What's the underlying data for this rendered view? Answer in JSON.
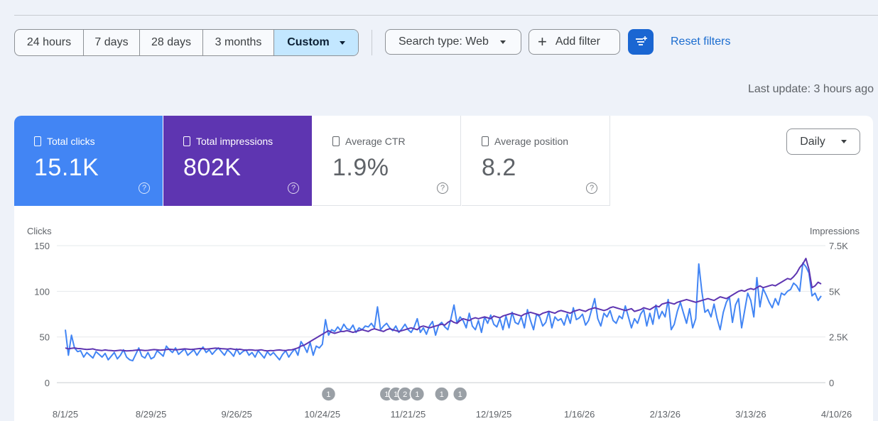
{
  "date_range": {
    "options": [
      "24 hours",
      "7 days",
      "28 days",
      "3 months",
      "Custom"
    ],
    "selected": "Custom"
  },
  "filters": {
    "search_type": "Search type: Web",
    "add_filter": "Add filter",
    "filter_icon": "filter-sliders-icon",
    "reset": "Reset filters"
  },
  "last_update": "Last update: 3 hours ago",
  "metrics": [
    {
      "label": "Total clicks",
      "value": "15.1K",
      "selected": true,
      "color": "#4285f4"
    },
    {
      "label": "Total impressions",
      "value": "802K",
      "selected": true,
      "color": "#5e35b1"
    },
    {
      "label": "Average CTR",
      "value": "1.9%",
      "selected": false
    },
    {
      "label": "Average position",
      "value": "8.2",
      "selected": false
    }
  ],
  "granularity": "Daily",
  "colors": {
    "accent": "#1a66d2",
    "clicks": "#4285f4",
    "impressions": "#5e35b1"
  },
  "chart_data": {
    "type": "line",
    "ylabel_left": "Clicks",
    "ylabel_right": "Impressions",
    "yticks_left": [
      "150",
      "100",
      "50",
      "0"
    ],
    "yticks_right": [
      "7.5K",
      "5K",
      "2.5K",
      "0"
    ],
    "ylim_left": [
      0,
      150
    ],
    "ylim_right": [
      0,
      7500
    ],
    "x_ticks": [
      "8/1/25",
      "8/29/25",
      "9/26/25",
      "10/24/25",
      "11/21/25",
      "12/19/25",
      "1/16/26",
      "2/13/26",
      "3/13/26",
      "4/10/26"
    ],
    "annotations": [
      {
        "x": "10/26/25",
        "label": "1"
      },
      {
        "x": "11/14/25",
        "label": "1"
      },
      {
        "x": "11/17/25",
        "label": "1"
      },
      {
        "x": "11/20/25",
        "label": "2"
      },
      {
        "x": "11/24/25",
        "label": "1"
      },
      {
        "x": "12/2/25",
        "label": "1"
      },
      {
        "x": "12/8/25",
        "label": "1"
      }
    ],
    "series": [
      {
        "name": "Clicks",
        "color": "#4285f4",
        "axis": "left",
        "values": [
          58,
          30,
          52,
          38,
          34,
          35,
          28,
          33,
          30,
          27,
          34,
          31,
          28,
          32,
          25,
          29,
          33,
          26,
          30,
          36,
          28,
          25,
          24,
          31,
          38,
          29,
          27,
          33,
          26,
          28,
          35,
          32,
          29,
          40,
          36,
          33,
          38,
          31,
          34,
          37,
          30,
          33,
          36,
          30,
          35,
          39,
          33,
          36,
          31,
          35,
          38,
          34,
          30,
          36,
          33,
          29,
          37,
          31,
          34,
          36,
          30,
          33,
          28,
          35,
          31,
          27,
          34,
          30,
          33,
          29,
          25,
          31,
          35,
          28,
          33,
          37,
          30,
          45,
          40,
          33,
          44,
          30,
          40,
          38,
          42,
          69,
          52,
          58,
          56,
          61,
          57,
          64,
          59,
          58,
          63,
          55,
          60,
          58,
          62,
          61,
          65,
          60,
          83,
          58,
          62,
          65,
          60,
          57,
          62,
          55,
          59,
          64,
          58,
          55,
          61,
          70,
          55,
          60,
          53,
          62,
          67,
          52,
          63,
          66,
          61,
          58,
          70,
          85,
          65,
          72,
          68,
          60,
          76,
          62,
          58,
          68,
          55,
          72,
          65,
          74,
          64,
          61,
          70,
          58,
          73,
          60,
          77,
          66,
          64,
          72,
          60,
          80,
          68,
          58,
          75,
          72,
          62,
          66,
          78,
          60,
          72,
          68,
          70,
          63,
          75,
          65,
          82,
          69,
          71,
          75,
          63,
          68,
          80,
          92,
          70,
          62,
          76,
          72,
          79,
          68,
          65,
          73,
          70,
          84,
          72,
          60,
          70,
          65,
          75,
          80,
          62,
          76,
          64,
          85,
          70,
          78,
          72,
          91,
          58,
          64,
          78,
          88,
          76,
          65,
          81,
          60,
          70,
          130,
          100,
          77,
          80,
          72,
          86,
          70,
          58,
          77,
          88,
          94,
          66,
          85,
          92,
          60,
          79,
          98,
          90,
          72,
          115,
          83,
          103,
          96,
          88,
          82,
          92,
          85,
          98,
          96,
          100,
          102,
          109,
          106,
          100,
          131,
          127,
          120,
          95,
          98,
          90,
          95
        ]
      },
      {
        "name": "Impressions",
        "color": "#5e35b1",
        "axis": "right",
        "values": [
          1900,
          1850,
          1880,
          1900,
          1870,
          1860,
          1840,
          1820,
          1830,
          1850,
          1800,
          1780,
          1760,
          1790,
          1770,
          1760,
          1740,
          1760,
          1780,
          1760,
          1740,
          1750,
          1760,
          1780,
          1790,
          1780,
          1760,
          1770,
          1790,
          1810,
          1800,
          1780,
          1790,
          1810,
          1830,
          1820,
          1800,
          1810,
          1830,
          1850,
          1840,
          1820,
          1830,
          1850,
          1870,
          1860,
          1840,
          1850,
          1870,
          1890,
          1880,
          1860,
          1850,
          1840,
          1860,
          1830,
          1810,
          1830,
          1800,
          1780,
          1800,
          1790,
          1770,
          1780,
          1800,
          1760,
          1740,
          1760,
          1750,
          1780,
          1790,
          1770,
          1760,
          1790,
          1800,
          1850,
          1900,
          2000,
          2050,
          2150,
          2250,
          2350,
          2450,
          2550,
          2650,
          2750,
          2850,
          2750,
          2700,
          2750,
          2800,
          2800,
          2850,
          2800,
          2750,
          2800,
          2850,
          2900,
          2850,
          2800,
          2900,
          2950,
          2900,
          2850,
          2800,
          2900,
          2950,
          2900,
          2850,
          2800,
          2850,
          2900,
          2950,
          3000,
          2950,
          2900,
          3050,
          3100,
          3050,
          3000,
          3050,
          3100,
          3150,
          3200,
          3150,
          3300,
          3400,
          3300,
          3250,
          3400,
          3500,
          3450,
          3400,
          3500,
          3550,
          3500,
          3550,
          3600,
          3550,
          3500,
          3650,
          3600,
          3550,
          3650,
          3700,
          3750,
          3800,
          3750,
          3700,
          3650,
          3750,
          3800,
          3850,
          3800,
          3750,
          3700,
          3800,
          3850,
          3900,
          3850,
          3800,
          3900,
          3950,
          3900,
          3850,
          3800,
          3900,
          3950,
          4000,
          3950,
          3900,
          4000,
          4050,
          4100,
          4050,
          4000,
          3950,
          4000,
          4100,
          4150,
          4100,
          4050,
          4000,
          3950,
          4000,
          4050,
          3900,
          3950,
          4000,
          4100,
          4050,
          4000,
          4100,
          4200,
          4150,
          4300,
          4350,
          4400,
          4350,
          4300,
          4400,
          4450,
          4500,
          4550,
          4500,
          4450,
          4400,
          4450,
          4500,
          4550,
          4600,
          4550,
          4500,
          4600,
          4700,
          4650,
          4600,
          4700,
          4800,
          4900,
          5000,
          5050,
          5000,
          5100,
          5150,
          5100,
          5200,
          5300,
          5200,
          5250,
          5300,
          5350,
          5300,
          5400,
          5500,
          5600,
          5700,
          5650,
          5800,
          6000,
          6300,
          6500,
          6800,
          6200,
          5200,
          5300,
          5500,
          5400
        ]
      }
    ]
  }
}
